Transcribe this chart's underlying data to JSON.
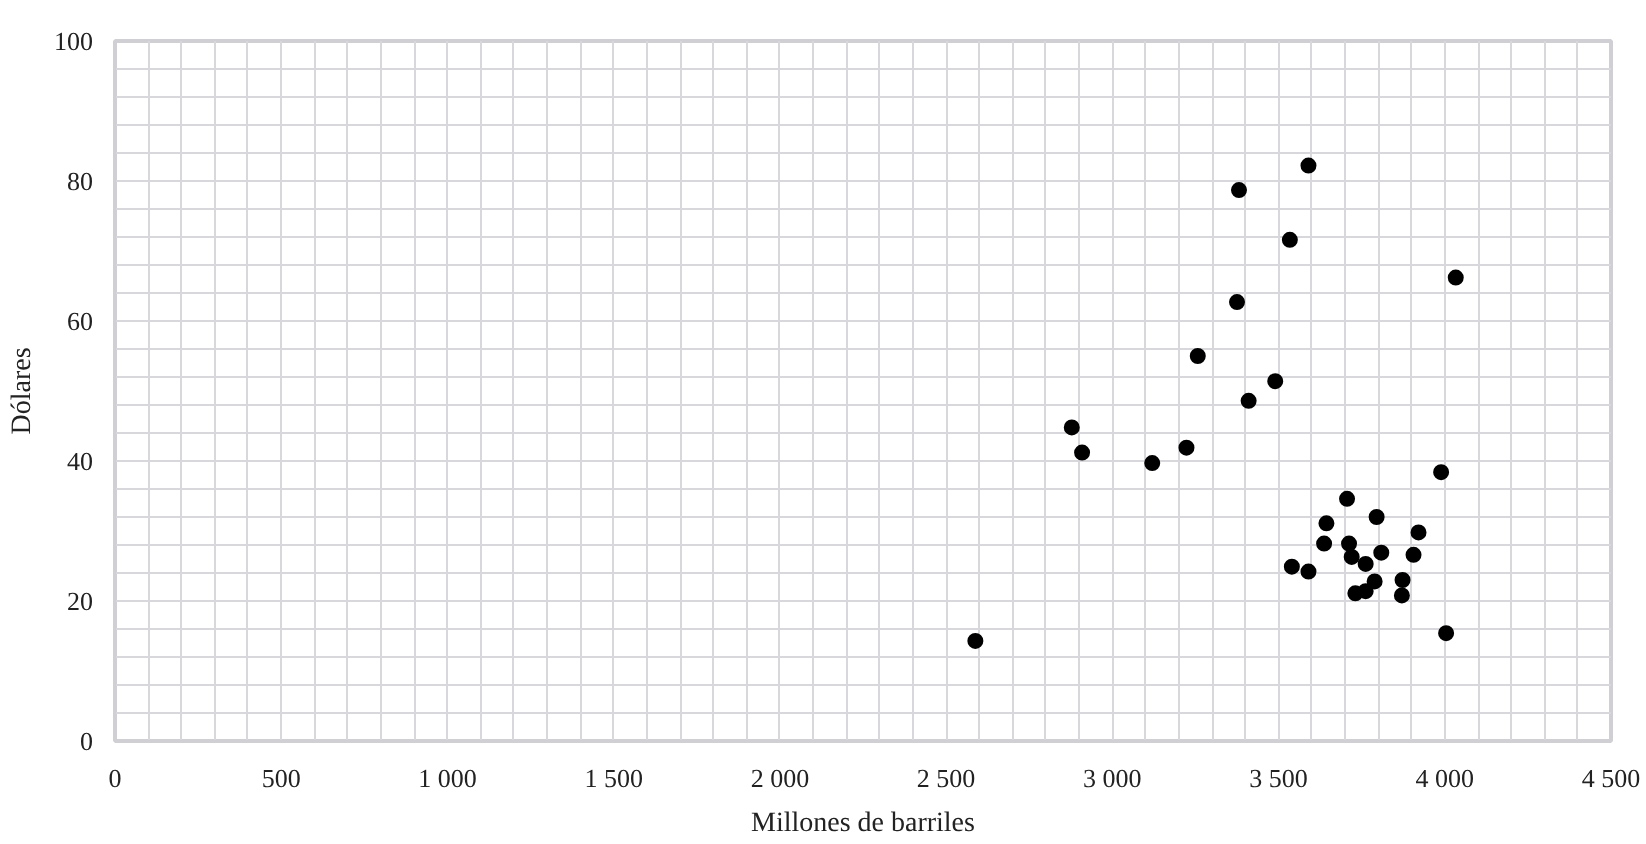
{
  "chart_data": {
    "type": "scatter",
    "xlabel": "Millones de barriles",
    "ylabel": "Dólares",
    "xlim": [
      0,
      4500
    ],
    "ylim": [
      0,
      100
    ],
    "grid": true,
    "marker": "circle",
    "xticks": [
      0,
      {
        "value": 100,
        "label": null
      },
      {
        "value": 200,
        "label": null
      },
      {
        "value": 300,
        "label": null
      },
      {
        "value": 400,
        "label": null
      },
      500,
      {
        "value": 600,
        "label": null
      },
      {
        "value": 700,
        "label": null
      },
      {
        "value": 800,
        "label": null
      },
      {
        "value": 900,
        "label": null
      },
      {
        "value": 1000,
        "label": "1 000"
      },
      {
        "value": 1100,
        "label": null
      },
      {
        "value": 1200,
        "label": null
      },
      {
        "value": 1300,
        "label": null
      },
      {
        "value": 1400,
        "label": null
      },
      {
        "value": 1500,
        "label": "1 500"
      },
      {
        "value": 1600,
        "label": null
      },
      {
        "value": 1700,
        "label": null
      },
      {
        "value": 1800,
        "label": null
      },
      {
        "value": 1900,
        "label": null
      },
      {
        "value": 2000,
        "label": "2 000"
      },
      {
        "value": 2100,
        "label": null
      },
      {
        "value": 2200,
        "label": null
      },
      {
        "value": 2300,
        "label": null
      },
      {
        "value": 2400,
        "label": null
      },
      {
        "value": 2500,
        "label": "2 500"
      },
      {
        "value": 2600,
        "label": null
      },
      {
        "value": 2700,
        "label": null
      },
      {
        "value": 2800,
        "label": null
      },
      {
        "value": 2900,
        "label": null
      },
      {
        "value": 3000,
        "label": "3 000"
      },
      {
        "value": 3100,
        "label": null
      },
      {
        "value": 3200,
        "label": null
      },
      {
        "value": 3300,
        "label": null
      },
      {
        "value": 3400,
        "label": null
      },
      {
        "value": 3500,
        "label": "3 500"
      },
      {
        "value": 3600,
        "label": null
      },
      {
        "value": 3700,
        "label": null
      },
      {
        "value": 3800,
        "label": null
      },
      {
        "value": 3900,
        "label": null
      },
      {
        "value": 4000,
        "label": "4 000"
      },
      {
        "value": 4100,
        "label": null
      },
      {
        "value": 4200,
        "label": null
      },
      {
        "value": 4300,
        "label": null
      },
      {
        "value": 4400,
        "label": null
      },
      {
        "value": 4500,
        "label": "4 500"
      }
    ],
    "yticks": [
      0,
      {
        "value": 4,
        "label": null
      },
      {
        "value": 8,
        "label": null
      },
      {
        "value": 12,
        "label": null
      },
      {
        "value": 16,
        "label": null
      },
      20,
      {
        "value": 24,
        "label": null
      },
      {
        "value": 28,
        "label": null
      },
      {
        "value": 32,
        "label": null
      },
      {
        "value": 36,
        "label": null
      },
      40,
      {
        "value": 44,
        "label": null
      },
      {
        "value": 48,
        "label": null
      },
      {
        "value": 52,
        "label": null
      },
      {
        "value": 56,
        "label": null
      },
      60,
      {
        "value": 64,
        "label": null
      },
      {
        "value": 68,
        "label": null
      },
      {
        "value": 72,
        "label": null
      },
      {
        "value": 76,
        "label": null
      },
      80,
      {
        "value": 84,
        "label": null
      },
      {
        "value": 88,
        "label": null
      },
      {
        "value": 92,
        "label": null
      },
      {
        "value": 96,
        "label": null
      },
      100
    ],
    "series": [
      {
        "color": "#000000",
        "x": [
          3706,
          3644,
          3795,
          3637,
          3712,
          3921,
          3720,
          3809,
          3906,
          3762,
          3540,
          3590,
          3789,
          3873,
          3762,
          3731,
          3871,
          2588,
          4004,
          3989,
          3410,
          2878,
          2909,
          3120,
          3223,
          3590,
          3381,
          3534,
          4033,
          3375,
          3257,
          3490
        ],
        "values": [
          34.6,
          31.1,
          32.0,
          28.2,
          28.2,
          29.8,
          26.3,
          26.9,
          26.6,
          25.3,
          24.9,
          24.2,
          22.8,
          23.0,
          21.4,
          21.1,
          20.8,
          14.3,
          15.4,
          38.4,
          48.6,
          44.8,
          41.2,
          39.7,
          41.9,
          82.2,
          78.7,
          71.6,
          66.2,
          62.7,
          55.0,
          51.4
        ]
      }
    ]
  }
}
